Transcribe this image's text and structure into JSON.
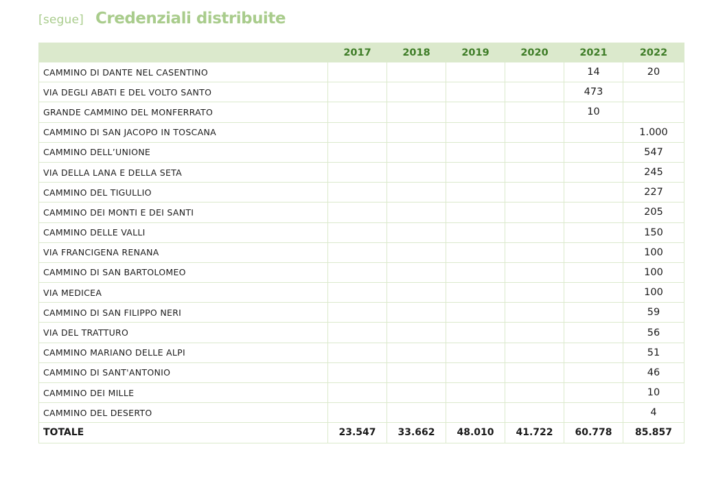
{
  "header": {
    "segue": "[segue]",
    "title": "Credenziali distribuite"
  },
  "table": {
    "columns": [
      "",
      "2017",
      "2018",
      "2019",
      "2020",
      "2021",
      "2022"
    ],
    "rows": [
      [
        "CAMMINO DI DANTE NEL CASENTINO",
        "",
        "",
        "",
        "",
        "14",
        "20"
      ],
      [
        "VIA DEGLI ABATI E DEL VOLTO SANTO",
        "",
        "",
        "",
        "",
        "473",
        ""
      ],
      [
        "GRANDE CAMMINO DEL MONFERRATO",
        "",
        "",
        "",
        "",
        "10",
        ""
      ],
      [
        "CAMMINO DI SAN JACOPO IN TOSCANA",
        "",
        "",
        "",
        "",
        "",
        "1.000"
      ],
      [
        "CAMMINO DELL’UNIONE",
        "",
        "",
        "",
        "",
        "",
        "547"
      ],
      [
        "VIA DELLA LANA E DELLA SETA",
        "",
        "",
        "",
        "",
        "",
        "245"
      ],
      [
        "CAMMINO DEL TIGULLIO",
        "",
        "",
        "",
        "",
        "",
        "227"
      ],
      [
        "CAMMINO DEI MONTI E DEI SANTI",
        "",
        "",
        "",
        "",
        "",
        "205"
      ],
      [
        "CAMMINO DELLE VALLI",
        "",
        "",
        "",
        "",
        "",
        "150"
      ],
      [
        "VIA FRANCIGENA RENANA",
        "",
        "",
        "",
        "",
        "",
        "100"
      ],
      [
        "CAMMINO DI SAN BARTOLOMEO",
        "",
        "",
        "",
        "",
        "",
        "100"
      ],
      [
        "VIA MEDICEA",
        "",
        "",
        "",
        "",
        "",
        "100"
      ],
      [
        "CAMMINO DI SAN FILIPPO NERI",
        "",
        "",
        "",
        "",
        "",
        "59"
      ],
      [
        "VIA DEL TRATTURO",
        "",
        "",
        "",
        "",
        "",
        "56"
      ],
      [
        "CAMMINO MARIANO DELLE ALPI",
        "",
        "",
        "",
        "",
        "",
        "51"
      ],
      [
        "CAMMINO DI SANT'ANTONIO",
        "",
        "",
        "",
        "",
        "",
        "46"
      ],
      [
        "CAMMINO DEI MILLE",
        "",
        "",
        "",
        "",
        "",
        "10"
      ],
      [
        "CAMMINO DEL DESERTO",
        "",
        "",
        "",
        "",
        "",
        "4"
      ]
    ],
    "total": [
      "TOTALE",
      "23.547",
      "33.662",
      "48.010",
      "41.722",
      "60.778",
      "85.857"
    ]
  }
}
